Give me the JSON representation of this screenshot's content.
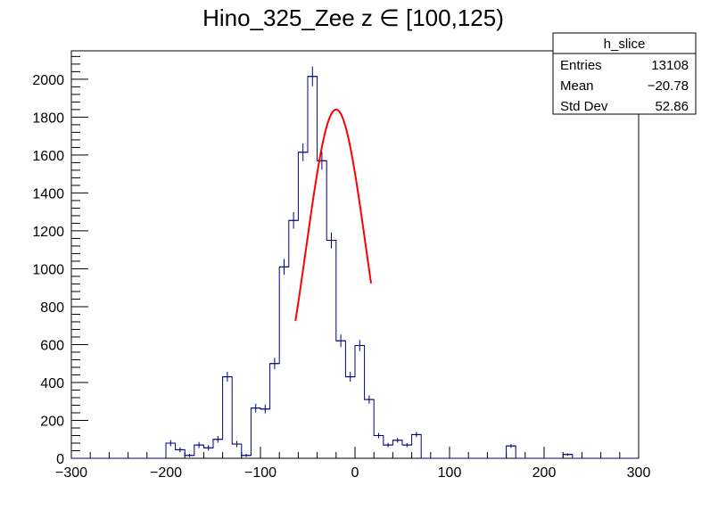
{
  "chart_data": {
    "type": "bar",
    "title": "Hino_325_Zee z  ∈ [100,125)",
    "xlabel": "",
    "ylabel": "",
    "xlim": [
      -300,
      300
    ],
    "ylim": [
      0,
      2150
    ],
    "x_ticks": [
      -300,
      -200,
      -100,
      0,
      100,
      200,
      300
    ],
    "y_ticks": [
      0,
      200,
      400,
      600,
      800,
      1000,
      1200,
      1400,
      1600,
      1800,
      2000
    ],
    "bin_width": 10,
    "bin_low_edges": [
      -210,
      -200,
      -190,
      -180,
      -170,
      -160,
      -150,
      -140,
      -130,
      -120,
      -110,
      -100,
      -90,
      -80,
      -70,
      -60,
      -50,
      -40,
      -30,
      -20,
      -10,
      0,
      10,
      20,
      30,
      40,
      50,
      60,
      70,
      80,
      90,
      100,
      110,
      120,
      130,
      140,
      150,
      160,
      170,
      180,
      190,
      200,
      210,
      220,
      230
    ],
    "values": [
      0,
      80,
      45,
      15,
      70,
      55,
      100,
      430,
      75,
      15,
      265,
      260,
      500,
      1010,
      1255,
      1615,
      2015,
      1570,
      1150,
      620,
      430,
      595,
      310,
      120,
      70,
      95,
      70,
      125,
      0,
      0,
      0,
      0,
      0,
      0,
      0,
      0,
      0,
      65,
      0,
      0,
      0,
      0,
      0,
      20,
      0
    ],
    "errors": [
      0,
      16,
      13,
      8,
      16,
      14,
      18,
      26,
      16,
      8,
      23,
      23,
      30,
      42,
      44,
      47,
      52,
      47,
      42,
      33,
      26,
      29,
      22,
      14,
      11,
      13,
      11,
      14,
      0,
      0,
      0,
      0,
      0,
      0,
      0,
      0,
      0,
      10,
      0,
      0,
      0,
      0,
      0,
      6,
      0
    ],
    "fit": {
      "type": "gaussian",
      "amplitude": 1840,
      "mean": -20,
      "sigma": 31.5,
      "x_range": [
        -63,
        17
      ],
      "color": "#ff0000"
    },
    "series_color": "#000080",
    "grid": false,
    "stats_box": {
      "title": "h_slice",
      "rows": [
        {
          "label": "Entries",
          "value": "13108"
        },
        {
          "label": "Mean",
          "value": "−20.78"
        },
        {
          "label": "Std Dev",
          "value": "52.86"
        }
      ]
    }
  }
}
